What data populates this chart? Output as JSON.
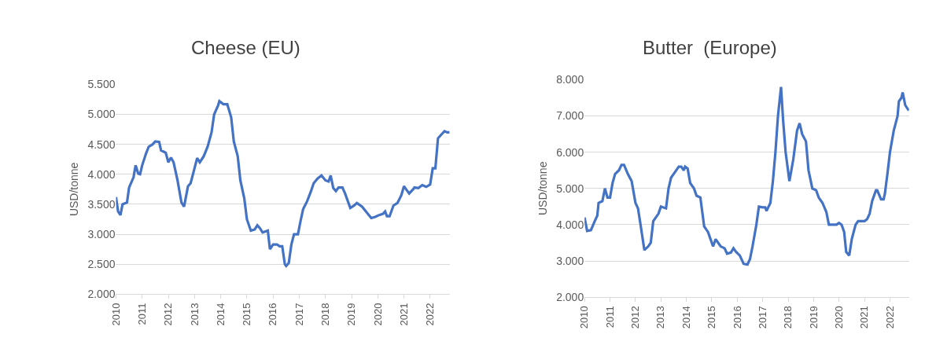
{
  "chart_data": [
    {
      "type": "line",
      "title": "Cheese (EU)",
      "ylabel": "USD/tonne",
      "grid": "y",
      "marker": "none",
      "line_style": "solid",
      "xlim": [
        2010,
        2022.75
      ],
      "xticks": [
        2010,
        2011,
        2012,
        2013,
        2014,
        2015,
        2016,
        2017,
        2018,
        2019,
        2020,
        2021,
        2022
      ],
      "ylim": [
        2000,
        5500
      ],
      "yticks": [
        {
          "value": 2000,
          "label": "2.000"
        },
        {
          "value": 2500,
          "label": "2.500"
        },
        {
          "value": 3000,
          "label": "3.000"
        },
        {
          "value": 3500,
          "label": "3.500"
        },
        {
          "value": 4000,
          "label": "4.000"
        },
        {
          "value": 4500,
          "label": "4.500"
        },
        {
          "value": 5000,
          "label": "5.000"
        },
        {
          "value": 5500,
          "label": "5.500"
        }
      ],
      "x": [
        2010.0,
        2010.08,
        2010.17,
        2010.25,
        2010.42,
        2010.5,
        2010.67,
        2010.75,
        2010.85,
        2010.92,
        2011.0,
        2011.15,
        2011.25,
        2011.4,
        2011.5,
        2011.65,
        2011.72,
        2011.9,
        2012.0,
        2012.1,
        2012.2,
        2012.35,
        2012.5,
        2012.6,
        2012.75,
        2012.85,
        2013.0,
        2013.1,
        2013.2,
        2013.35,
        2013.5,
        2013.65,
        2013.75,
        2013.9,
        2013.95,
        2014.1,
        2014.25,
        2014.4,
        2014.5,
        2014.65,
        2014.75,
        2014.9,
        2015.0,
        2015.15,
        2015.3,
        2015.4,
        2015.5,
        2015.6,
        2015.8,
        2015.88,
        2016.0,
        2016.15,
        2016.25,
        2016.35,
        2016.45,
        2016.5,
        2016.6,
        2016.7,
        2016.8,
        2016.95,
        2017.05,
        2017.15,
        2017.3,
        2017.45,
        2017.55,
        2017.7,
        2017.85,
        2018.0,
        2018.12,
        2018.2,
        2018.3,
        2018.4,
        2018.5,
        2018.65,
        2018.75,
        2018.95,
        2019.1,
        2019.2,
        2019.4,
        2019.6,
        2019.75,
        2019.9,
        2020.05,
        2020.2,
        2020.28,
        2020.35,
        2020.45,
        2020.6,
        2020.75,
        2020.9,
        2021.0,
        2021.1,
        2021.2,
        2021.35,
        2021.4,
        2021.55,
        2021.7,
        2021.85,
        2022.0,
        2022.1,
        2022.2,
        2022.3,
        2022.4,
        2022.55,
        2022.65,
        2022.74
      ],
      "series": [
        {
          "color": "#4472c4",
          "values": [
            3620,
            3380,
            3320,
            3500,
            3530,
            3780,
            3950,
            4150,
            4010,
            4000,
            4150,
            4350,
            4460,
            4500,
            4550,
            4540,
            4400,
            4360,
            4200,
            4280,
            4200,
            3900,
            3530,
            3460,
            3800,
            3850,
            4100,
            4270,
            4200,
            4300,
            4460,
            4700,
            5000,
            5150,
            5220,
            5170,
            5170,
            4950,
            4550,
            4300,
            3900,
            3600,
            3250,
            3060,
            3080,
            3150,
            3100,
            3030,
            3060,
            2750,
            2830,
            2830,
            2800,
            2800,
            2500,
            2470,
            2520,
            2830,
            3000,
            3000,
            3220,
            3420,
            3550,
            3720,
            3850,
            3930,
            3980,
            3900,
            3880,
            3980,
            3770,
            3720,
            3780,
            3780,
            3680,
            3440,
            3480,
            3520,
            3460,
            3350,
            3270,
            3290,
            3320,
            3340,
            3380,
            3300,
            3300,
            3480,
            3520,
            3650,
            3800,
            3740,
            3680,
            3750,
            3780,
            3770,
            3820,
            3790,
            3830,
            4100,
            4100,
            4600,
            4650,
            4720,
            4700,
            4700
          ]
        }
      ]
    },
    {
      "type": "line",
      "title": "Butter  (Europe)",
      "ylabel": "USD/tonne",
      "grid": "y",
      "marker": "none",
      "line_style": "solid",
      "xlim": [
        2010,
        2022.75
      ],
      "xticks": [
        2010,
        2011,
        2012,
        2013,
        2014,
        2015,
        2016,
        2017,
        2018,
        2019,
        2020,
        2021,
        2022
      ],
      "ylim": [
        2000,
        8000
      ],
      "yticks": [
        {
          "value": 2000,
          "label": "2.000"
        },
        {
          "value": 3000,
          "label": "3.000"
        },
        {
          "value": 4000,
          "label": "4.000"
        },
        {
          "value": 5000,
          "label": "5.000"
        },
        {
          "value": 6000,
          "label": "6.000"
        },
        {
          "value": 7000,
          "label": "7.000"
        },
        {
          "value": 8000,
          "label": "8.000"
        }
      ],
      "x": [
        2010.0,
        2010.1,
        2010.25,
        2010.4,
        2010.5,
        2010.55,
        2010.7,
        2010.8,
        2010.9,
        2011.0,
        2011.1,
        2011.2,
        2011.35,
        2011.45,
        2011.55,
        2011.7,
        2011.85,
        2012.0,
        2012.1,
        2012.2,
        2012.35,
        2012.5,
        2012.6,
        2012.7,
        2012.9,
        2013.0,
        2013.2,
        2013.3,
        2013.4,
        2013.55,
        2013.7,
        2013.8,
        2013.9,
        2013.95,
        2014.05,
        2014.15,
        2014.3,
        2014.4,
        2014.55,
        2014.7,
        2014.85,
        2014.95,
        2015.05,
        2015.15,
        2015.25,
        2015.35,
        2015.5,
        2015.6,
        2015.75,
        2015.85,
        2015.95,
        2016.1,
        2016.25,
        2016.4,
        2016.5,
        2016.6,
        2016.75,
        2016.85,
        2017.0,
        2017.1,
        2017.15,
        2017.3,
        2017.4,
        2017.5,
        2017.6,
        2017.72,
        2017.8,
        2017.9,
        2018.05,
        2018.2,
        2018.35,
        2018.45,
        2018.55,
        2018.7,
        2018.8,
        2018.95,
        2019.1,
        2019.2,
        2019.35,
        2019.5,
        2019.6,
        2019.75,
        2019.9,
        2020.0,
        2020.1,
        2020.2,
        2020.28,
        2020.4,
        2020.5,
        2020.65,
        2020.75,
        2020.9,
        2021.0,
        2021.1,
        2021.2,
        2021.3,
        2021.45,
        2021.5,
        2021.65,
        2021.75,
        2021.8,
        2021.9,
        2022.0,
        2022.15,
        2022.3,
        2022.35,
        2022.45,
        2022.5,
        2022.6,
        2022.74
      ],
      "series": [
        {
          "color": "#4472c4",
          "values": [
            4200,
            3830,
            3850,
            4100,
            4250,
            4600,
            4650,
            5000,
            4750,
            4750,
            5150,
            5400,
            5500,
            5650,
            5650,
            5400,
            5200,
            4600,
            4450,
            4000,
            3300,
            3400,
            3500,
            4100,
            4300,
            4500,
            4450,
            5000,
            5300,
            5450,
            5600,
            5600,
            5500,
            5600,
            5550,
            5150,
            5000,
            4800,
            4750,
            3950,
            3800,
            3600,
            3400,
            3600,
            3500,
            3400,
            3350,
            3200,
            3230,
            3350,
            3250,
            3150,
            2920,
            2900,
            3050,
            3400,
            4000,
            4500,
            4480,
            4480,
            4380,
            4600,
            5200,
            6000,
            7000,
            7800,
            6900,
            6000,
            5200,
            5800,
            6600,
            6800,
            6500,
            6300,
            5500,
            5000,
            4950,
            4750,
            4600,
            4350,
            4000,
            4000,
            4000,
            4050,
            4000,
            3800,
            3250,
            3150,
            3600,
            4000,
            4100,
            4100,
            4100,
            4150,
            4300,
            4650,
            4950,
            4950,
            4700,
            4700,
            4850,
            5400,
            6000,
            6600,
            7000,
            7400,
            7500,
            7650,
            7300,
            7150
          ]
        }
      ]
    }
  ]
}
